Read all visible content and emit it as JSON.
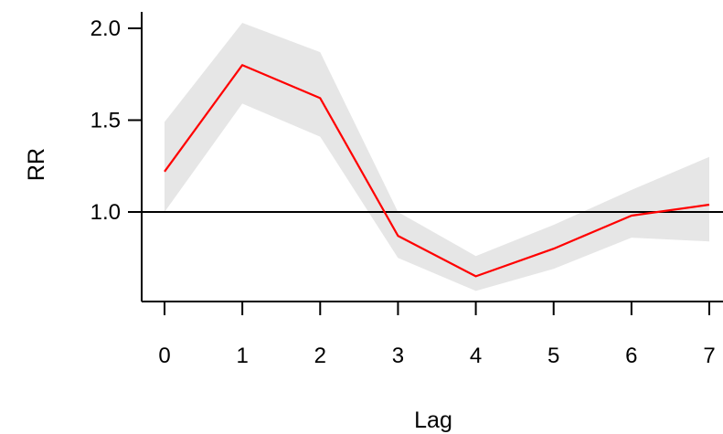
{
  "chart_data": {
    "type": "line",
    "title": "",
    "xlabel": "Lag",
    "ylabel": "RR",
    "x": [
      0,
      1,
      2,
      3,
      4,
      5,
      6,
      7
    ],
    "x_tick_labels": [
      "0",
      "1",
      "2",
      "3",
      "4",
      "5",
      "6",
      "7"
    ],
    "y_ticks": [
      1.0,
      1.5,
      2.0
    ],
    "y_tick_labels": [
      "1.0",
      "1.5",
      "2.0"
    ],
    "xlim": [
      0,
      7
    ],
    "ylim": [
      0.5,
      2.1
    ],
    "series": [
      {
        "values": [
          1.22,
          1.8,
          1.62,
          0.87,
          0.65,
          0.8,
          0.98,
          1.04
        ],
        "ci_lower": [
          1.0,
          1.59,
          1.41,
          0.75,
          0.57,
          0.69,
          0.86,
          0.84
        ],
        "ci_upper": [
          1.49,
          2.03,
          1.87,
          1.0,
          0.76,
          0.93,
          1.12,
          1.3
        ]
      }
    ],
    "reference_line": 1.0,
    "grid": false,
    "colors": {
      "line": "#ff0000",
      "band": "#e6e6e6",
      "axis": "#000000"
    }
  }
}
